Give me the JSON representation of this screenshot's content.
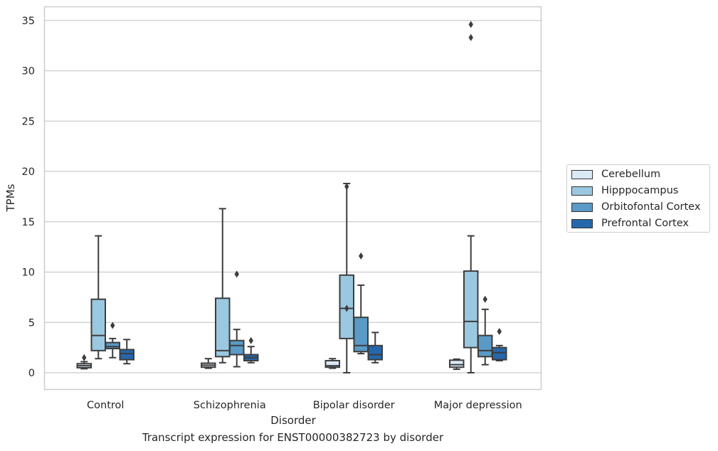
{
  "chart_data": {
    "type": "box",
    "title": "",
    "caption": "Transcript expression for ENST00000382723 by disorder",
    "xlabel": "Disorder",
    "ylabel": "TPMs",
    "ylim": [
      -1.7,
      36.3
    ],
    "yticks": [
      0,
      5,
      10,
      15,
      20,
      25,
      30,
      35
    ],
    "grid": "horizontal",
    "legend_position": "right",
    "categories": [
      "Control",
      "Schizophrenia",
      "Bipolar disorder",
      "Major depression"
    ],
    "series": [
      {
        "name": "Cerebellum",
        "color": "#dbe9f6",
        "boxes": [
          {
            "whisker_low": 0.4,
            "q1": 0.5,
            "median": 0.7,
            "q3": 0.9,
            "whisker_high": 1.1,
            "outliers": [
              1.5
            ]
          },
          {
            "whisker_low": 0.45,
            "q1": 0.55,
            "median": 0.75,
            "q3": 0.95,
            "whisker_high": 1.4,
            "outliers": []
          },
          {
            "whisker_low": 0.45,
            "q1": 0.55,
            "median": 0.7,
            "q3": 1.2,
            "whisker_high": 1.4,
            "outliers": []
          },
          {
            "whisker_low": 0.35,
            "q1": 0.55,
            "median": 0.8,
            "q3": 1.25,
            "whisker_high": 1.35,
            "outliers": []
          }
        ]
      },
      {
        "name": "Hipppocampus",
        "color": "#9ac8e0",
        "boxes": [
          {
            "whisker_low": 1.4,
            "q1": 2.2,
            "median": 3.7,
            "q3": 7.3,
            "whisker_high": 13.6,
            "outliers": []
          },
          {
            "whisker_low": 1.0,
            "q1": 1.6,
            "median": 2.2,
            "q3": 7.4,
            "whisker_high": 16.3,
            "outliers": []
          },
          {
            "whisker_low": 0.0,
            "q1": 3.4,
            "median": 6.4,
            "q3": 9.7,
            "whisker_high": 18.8,
            "outliers": [
              6.4,
              18.5
            ]
          },
          {
            "whisker_low": 0.0,
            "q1": 2.5,
            "median": 5.1,
            "q3": 10.1,
            "whisker_high": 13.6,
            "outliers": [
              33.3,
              34.6
            ]
          }
        ]
      },
      {
        "name": "Orbitofontal Cortex",
        "color": "#5a9ac6",
        "boxes": [
          {
            "whisker_low": 1.5,
            "q1": 2.4,
            "median": 2.6,
            "q3": 3.0,
            "whisker_high": 3.4,
            "outliers": [
              4.7
            ]
          },
          {
            "whisker_low": 0.6,
            "q1": 1.8,
            "median": 2.7,
            "q3": 3.2,
            "whisker_high": 4.3,
            "outliers": [
              9.8
            ]
          },
          {
            "whisker_low": 1.9,
            "q1": 2.1,
            "median": 2.7,
            "q3": 5.5,
            "whisker_high": 8.7,
            "outliers": [
              11.6
            ]
          },
          {
            "whisker_low": 0.8,
            "q1": 1.6,
            "median": 2.2,
            "q3": 3.7,
            "whisker_high": 6.3,
            "outliers": [
              7.3
            ]
          }
        ]
      },
      {
        "name": "Prefrontal Cortex",
        "color": "#2567ac",
        "boxes": [
          {
            "whisker_low": 0.9,
            "q1": 1.3,
            "median": 1.9,
            "q3": 2.3,
            "whisker_high": 3.3,
            "outliers": []
          },
          {
            "whisker_low": 1.0,
            "q1": 1.2,
            "median": 1.5,
            "q3": 1.8,
            "whisker_high": 2.6,
            "outliers": [
              3.2
            ]
          },
          {
            "whisker_low": 1.0,
            "q1": 1.3,
            "median": 1.8,
            "q3": 2.7,
            "whisker_high": 4.0,
            "outliers": []
          },
          {
            "whisker_low": 1.2,
            "q1": 1.3,
            "median": 2.0,
            "q3": 2.5,
            "whisker_high": 2.7,
            "outliers": [
              4.1
            ]
          }
        ]
      }
    ]
  }
}
